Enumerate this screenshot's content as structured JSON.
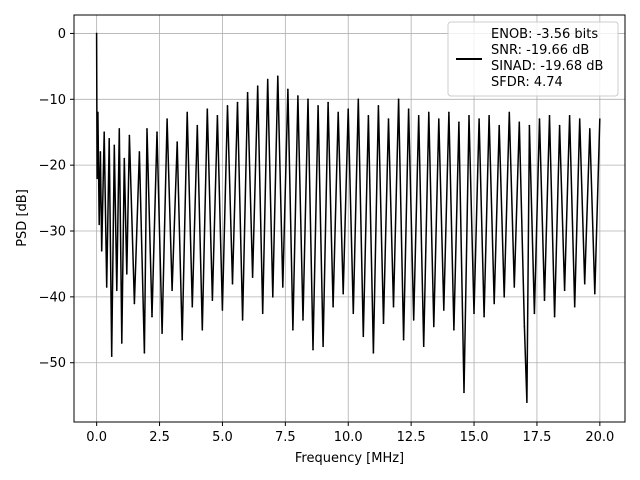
{
  "chart_data": {
    "type": "line",
    "xlabel": "Frequency [MHz]",
    "ylabel": "PSD [dB]",
    "xlim": [
      -0.9,
      21.0
    ],
    "ylim": [
      -59,
      2.8
    ],
    "xticks": [
      0.0,
      2.5,
      5.0,
      7.5,
      10.0,
      12.5,
      15.0,
      17.5,
      20.0
    ],
    "xtick_labels": [
      "0.0",
      "2.5",
      "5.0",
      "7.5",
      "10.0",
      "12.5",
      "15.0",
      "17.5",
      "20.0"
    ],
    "yticks": [
      0,
      -10,
      -20,
      -30,
      -40,
      -50
    ],
    "ytick_labels": [
      "0",
      "−10",
      "−20",
      "−30",
      "−40",
      "−50"
    ],
    "grid": true,
    "legend_position": "top-right",
    "legend_lines": [
      "ENOB: -3.56 bits",
      "SNR: -19.66 dB",
      "SINAD: -19.68 dB",
      "SFDR: 4.74"
    ],
    "series": [
      {
        "color": "#000000",
        "x": [
          0.0,
          0.02,
          0.05,
          0.1,
          0.15,
          0.2,
          0.3,
          0.4,
          0.5,
          0.6,
          0.7,
          0.8,
          0.9,
          1.0,
          1.1,
          1.2,
          1.3,
          1.5,
          1.7,
          1.9,
          2.0,
          2.2,
          2.4,
          2.6,
          2.8,
          3.0,
          3.2,
          3.4,
          3.6,
          3.8,
          4.0,
          4.2,
          4.4,
          4.6,
          4.8,
          5.0,
          5.2,
          5.4,
          5.6,
          5.8,
          6.0,
          6.2,
          6.4,
          6.6,
          6.8,
          7.0,
          7.2,
          7.4,
          7.6,
          7.8,
          8.0,
          8.2,
          8.4,
          8.6,
          8.8,
          9.0,
          9.2,
          9.4,
          9.6,
          9.8,
          10.0,
          10.2,
          10.4,
          10.6,
          10.8,
          11.0,
          11.2,
          11.4,
          11.6,
          11.8,
          12.0,
          12.2,
          12.4,
          12.6,
          12.8,
          13.0,
          13.2,
          13.4,
          13.6,
          13.8,
          14.0,
          14.2,
          14.4,
          14.6,
          14.8,
          15.0,
          15.2,
          15.4,
          15.6,
          15.8,
          16.0,
          16.2,
          16.4,
          16.6,
          16.8,
          17.0,
          17.1,
          17.2,
          17.4,
          17.6,
          17.8,
          18.0,
          18.2,
          18.4,
          18.6,
          18.8,
          19.0,
          19.2,
          19.4,
          19.6,
          19.8,
          20.0
        ],
        "y": [
          0.0,
          -22.0,
          -12.0,
          -29.0,
          -18.0,
          -33.0,
          -15.0,
          -38.5,
          -16.0,
          -49.0,
          -17.0,
          -39.0,
          -14.5,
          -47.0,
          -19.0,
          -36.5,
          -15.5,
          -41.0,
          -18.0,
          -48.5,
          -14.5,
          -43.0,
          -15.0,
          -45.5,
          -13.0,
          -39.0,
          -16.5,
          -46.5,
          -12.0,
          -41.5,
          -14.0,
          -45.0,
          -11.5,
          -40.5,
          -12.5,
          -42.0,
          -11.0,
          -38.0,
          -10.5,
          -43.5,
          -9.0,
          -37.0,
          -8.0,
          -42.5,
          -7.0,
          -40.0,
          -6.5,
          -38.5,
          -8.5,
          -45.0,
          -9.5,
          -43.5,
          -10.0,
          -48.0,
          -11.0,
          -47.5,
          -10.5,
          -41.5,
          -12.0,
          -39.5,
          -11.5,
          -42.5,
          -10.0,
          -46.0,
          -12.5,
          -48.5,
          -11.0,
          -44.0,
          -13.0,
          -41.5,
          -10.0,
          -46.5,
          -11.5,
          -43.5,
          -12.5,
          -47.5,
          -12.0,
          -44.5,
          -13.0,
          -42.0,
          -12.0,
          -45.0,
          -13.5,
          -54.5,
          -12.5,
          -42.5,
          -13.0,
          -43.0,
          -12.5,
          -41.0,
          -14.0,
          -40.0,
          -12.0,
          -38.5,
          -13.5,
          -44.5,
          -56.0,
          -14.0,
          -42.5,
          -13.0,
          -40.5,
          -12.5,
          -43.0,
          -14.0,
          -39.0,
          -12.5,
          -41.5,
          -13.0,
          -38.0,
          -14.5,
          -39.5,
          -13.0
        ]
      }
    ]
  }
}
